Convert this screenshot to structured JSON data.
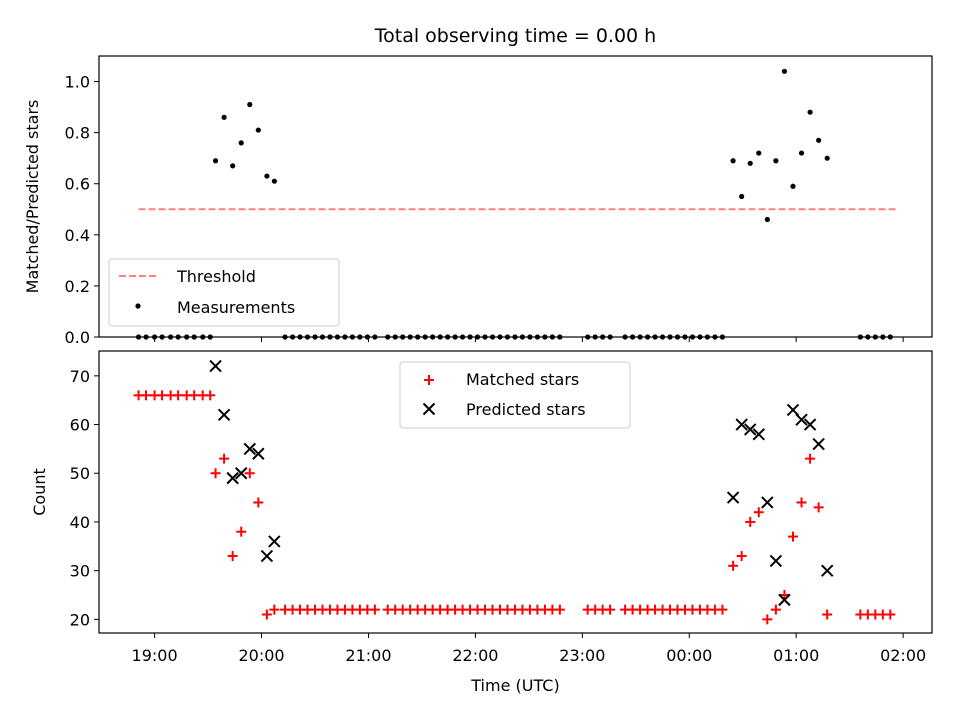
{
  "chart_data": [
    {
      "type": "scatter",
      "title": "Total observing time = 0.00 h",
      "ylabel": "Matched/Predicted stars",
      "xlabel": "",
      "x_unit": "hours since 18:00 UTC",
      "xlim": [
        0.48,
        8.27
      ],
      "ylim": [
        0.0,
        1.1
      ],
      "yticks": [
        "0.0",
        "0.2",
        "0.4",
        "0.6",
        "0.8",
        "1.0"
      ],
      "legend": {
        "placement": "lower-left",
        "entries": [
          "Threshold",
          "Measurements"
        ]
      },
      "threshold": {
        "name": "Threshold",
        "value": 0.5,
        "x_range": [
          0.85,
          7.93
        ],
        "color": "#ff8080"
      },
      "series": [
        {
          "name": "Measurements",
          "color": "#000000",
          "points": [
            [
              0.85,
              0.0
            ],
            [
              0.92,
              0.0
            ],
            [
              1.0,
              0.0
            ],
            [
              1.07,
              0.0
            ],
            [
              1.15,
              0.0
            ],
            [
              1.22,
              0.0
            ],
            [
              1.3,
              0.0
            ],
            [
              1.37,
              0.0
            ],
            [
              1.45,
              0.0
            ],
            [
              1.52,
              0.0
            ],
            [
              1.57,
              0.69
            ],
            [
              1.65,
              0.86
            ],
            [
              1.73,
              0.67
            ],
            [
              1.81,
              0.76
            ],
            [
              1.89,
              0.91
            ],
            [
              1.97,
              0.81
            ],
            [
              2.05,
              0.63
            ],
            [
              2.12,
              0.61
            ],
            [
              2.22,
              0.0
            ],
            [
              2.29,
              0.0
            ],
            [
              2.36,
              0.0
            ],
            [
              2.43,
              0.0
            ],
            [
              2.5,
              0.0
            ],
            [
              2.57,
              0.0
            ],
            [
              2.64,
              0.0
            ],
            [
              2.71,
              0.0
            ],
            [
              2.78,
              0.0
            ],
            [
              2.85,
              0.0
            ],
            [
              2.92,
              0.0
            ],
            [
              2.99,
              0.0
            ],
            [
              3.06,
              0.0
            ],
            [
              3.18,
              0.0
            ],
            [
              3.25,
              0.0
            ],
            [
              3.32,
              0.0
            ],
            [
              3.39,
              0.0
            ],
            [
              3.46,
              0.0
            ],
            [
              3.53,
              0.0
            ],
            [
              3.6,
              0.0
            ],
            [
              3.67,
              0.0
            ],
            [
              3.74,
              0.0
            ],
            [
              3.81,
              0.0
            ],
            [
              3.88,
              0.0
            ],
            [
              3.95,
              0.0
            ],
            [
              4.02,
              0.0
            ],
            [
              4.09,
              0.0
            ],
            [
              4.16,
              0.0
            ],
            [
              4.23,
              0.0
            ],
            [
              4.3,
              0.0
            ],
            [
              4.37,
              0.0
            ],
            [
              4.44,
              0.0
            ],
            [
              4.51,
              0.0
            ],
            [
              4.58,
              0.0
            ],
            [
              4.65,
              0.0
            ],
            [
              4.72,
              0.0
            ],
            [
              4.79,
              0.0
            ],
            [
              5.05,
              0.0
            ],
            [
              5.12,
              0.0
            ],
            [
              5.19,
              0.0
            ],
            [
              5.26,
              0.0
            ],
            [
              5.4,
              0.0
            ],
            [
              5.47,
              0.0
            ],
            [
              5.54,
              0.0
            ],
            [
              5.61,
              0.0
            ],
            [
              5.68,
              0.0
            ],
            [
              5.75,
              0.0
            ],
            [
              5.82,
              0.0
            ],
            [
              5.89,
              0.0
            ],
            [
              5.96,
              0.0
            ],
            [
              6.03,
              0.0
            ],
            [
              6.1,
              0.0
            ],
            [
              6.17,
              0.0
            ],
            [
              6.24,
              0.0
            ],
            [
              6.31,
              0.0
            ],
            [
              6.41,
              0.69
            ],
            [
              6.49,
              0.55
            ],
            [
              6.57,
              0.68
            ],
            [
              6.65,
              0.72
            ],
            [
              6.73,
              0.46
            ],
            [
              6.81,
              0.69
            ],
            [
              6.89,
              1.04
            ],
            [
              6.97,
              0.59
            ],
            [
              7.05,
              0.72
            ],
            [
              7.13,
              0.88
            ],
            [
              7.21,
              0.77
            ],
            [
              7.29,
              0.7
            ],
            [
              7.6,
              0.0
            ],
            [
              7.67,
              0.0
            ],
            [
              7.74,
              0.0
            ],
            [
              7.81,
              0.0
            ],
            [
              7.88,
              0.0
            ]
          ]
        }
      ]
    },
    {
      "type": "scatter",
      "title": "",
      "ylabel": "Count",
      "xlabel": "Time (UTC)",
      "x_unit": "hours since 18:00 UTC",
      "xlim": [
        0.48,
        8.27
      ],
      "ylim": [
        17.2,
        75.1
      ],
      "yticks": [
        "20",
        "30",
        "40",
        "50",
        "60",
        "70"
      ],
      "xticks": [
        {
          "x": 1.0,
          "label": "19:00"
        },
        {
          "x": 2.0,
          "label": "20:00"
        },
        {
          "x": 3.0,
          "label": "21:00"
        },
        {
          "x": 4.0,
          "label": "22:00"
        },
        {
          "x": 5.0,
          "label": "23:00"
        },
        {
          "x": 6.0,
          "label": "00:00"
        },
        {
          "x": 7.0,
          "label": "01:00"
        },
        {
          "x": 8.0,
          "label": "02:00"
        }
      ],
      "legend": {
        "placement": "upper-center",
        "entries": [
          "Matched stars",
          "Predicted stars"
        ]
      },
      "series": [
        {
          "name": "Matched stars",
          "marker": "plus",
          "color": "#ff0000",
          "points": [
            [
              0.85,
              66
            ],
            [
              0.92,
              66
            ],
            [
              1.0,
              66
            ],
            [
              1.07,
              66
            ],
            [
              1.15,
              66
            ],
            [
              1.22,
              66
            ],
            [
              1.3,
              66
            ],
            [
              1.37,
              66
            ],
            [
              1.45,
              66
            ],
            [
              1.52,
              66
            ],
            [
              1.57,
              50
            ],
            [
              1.65,
              53
            ],
            [
              1.73,
              33
            ],
            [
              1.81,
              38
            ],
            [
              1.89,
              50
            ],
            [
              1.97,
              44
            ],
            [
              2.05,
              21
            ],
            [
              2.12,
              22
            ],
            [
              2.22,
              22
            ],
            [
              2.29,
              22
            ],
            [
              2.36,
              22
            ],
            [
              2.43,
              22
            ],
            [
              2.5,
              22
            ],
            [
              2.57,
              22
            ],
            [
              2.64,
              22
            ],
            [
              2.71,
              22
            ],
            [
              2.78,
              22
            ],
            [
              2.85,
              22
            ],
            [
              2.92,
              22
            ],
            [
              2.99,
              22
            ],
            [
              3.06,
              22
            ],
            [
              3.18,
              22
            ],
            [
              3.25,
              22
            ],
            [
              3.32,
              22
            ],
            [
              3.39,
              22
            ],
            [
              3.46,
              22
            ],
            [
              3.53,
              22
            ],
            [
              3.6,
              22
            ],
            [
              3.67,
              22
            ],
            [
              3.74,
              22
            ],
            [
              3.81,
              22
            ],
            [
              3.88,
              22
            ],
            [
              3.95,
              22
            ],
            [
              4.02,
              22
            ],
            [
              4.09,
              22
            ],
            [
              4.16,
              22
            ],
            [
              4.23,
              22
            ],
            [
              4.3,
              22
            ],
            [
              4.37,
              22
            ],
            [
              4.44,
              22
            ],
            [
              4.51,
              22
            ],
            [
              4.58,
              22
            ],
            [
              4.65,
              22
            ],
            [
              4.72,
              22
            ],
            [
              4.79,
              22
            ],
            [
              5.05,
              22
            ],
            [
              5.12,
              22
            ],
            [
              5.19,
              22
            ],
            [
              5.26,
              22
            ],
            [
              5.4,
              22
            ],
            [
              5.47,
              22
            ],
            [
              5.54,
              22
            ],
            [
              5.61,
              22
            ],
            [
              5.68,
              22
            ],
            [
              5.75,
              22
            ],
            [
              5.82,
              22
            ],
            [
              5.89,
              22
            ],
            [
              5.96,
              22
            ],
            [
              6.03,
              22
            ],
            [
              6.1,
              22
            ],
            [
              6.17,
              22
            ],
            [
              6.24,
              22
            ],
            [
              6.31,
              22
            ],
            [
              6.41,
              31
            ],
            [
              6.49,
              33
            ],
            [
              6.57,
              40
            ],
            [
              6.65,
              42
            ],
            [
              6.73,
              20
            ],
            [
              6.81,
              22
            ],
            [
              6.89,
              25
            ],
            [
              6.97,
              37
            ],
            [
              7.05,
              44
            ],
            [
              7.13,
              53
            ],
            [
              7.21,
              43
            ],
            [
              7.29,
              21
            ],
            [
              7.6,
              21
            ],
            [
              7.67,
              21
            ],
            [
              7.74,
              21
            ],
            [
              7.81,
              21
            ],
            [
              7.88,
              21
            ]
          ]
        },
        {
          "name": "Predicted stars",
          "marker": "x",
          "color": "#000000",
          "points": [
            [
              1.57,
              72
            ],
            [
              1.65,
              62
            ],
            [
              1.73,
              49
            ],
            [
              1.81,
              50
            ],
            [
              1.89,
              55
            ],
            [
              1.97,
              54
            ],
            [
              2.05,
              33
            ],
            [
              2.12,
              36
            ],
            [
              6.41,
              45
            ],
            [
              6.49,
              60
            ],
            [
              6.57,
              59
            ],
            [
              6.65,
              58
            ],
            [
              6.73,
              44
            ],
            [
              6.81,
              32
            ],
            [
              6.89,
              24
            ],
            [
              6.97,
              63
            ],
            [
              7.05,
              61
            ],
            [
              7.13,
              60
            ],
            [
              7.21,
              56
            ],
            [
              7.29,
              30
            ]
          ]
        }
      ]
    }
  ]
}
